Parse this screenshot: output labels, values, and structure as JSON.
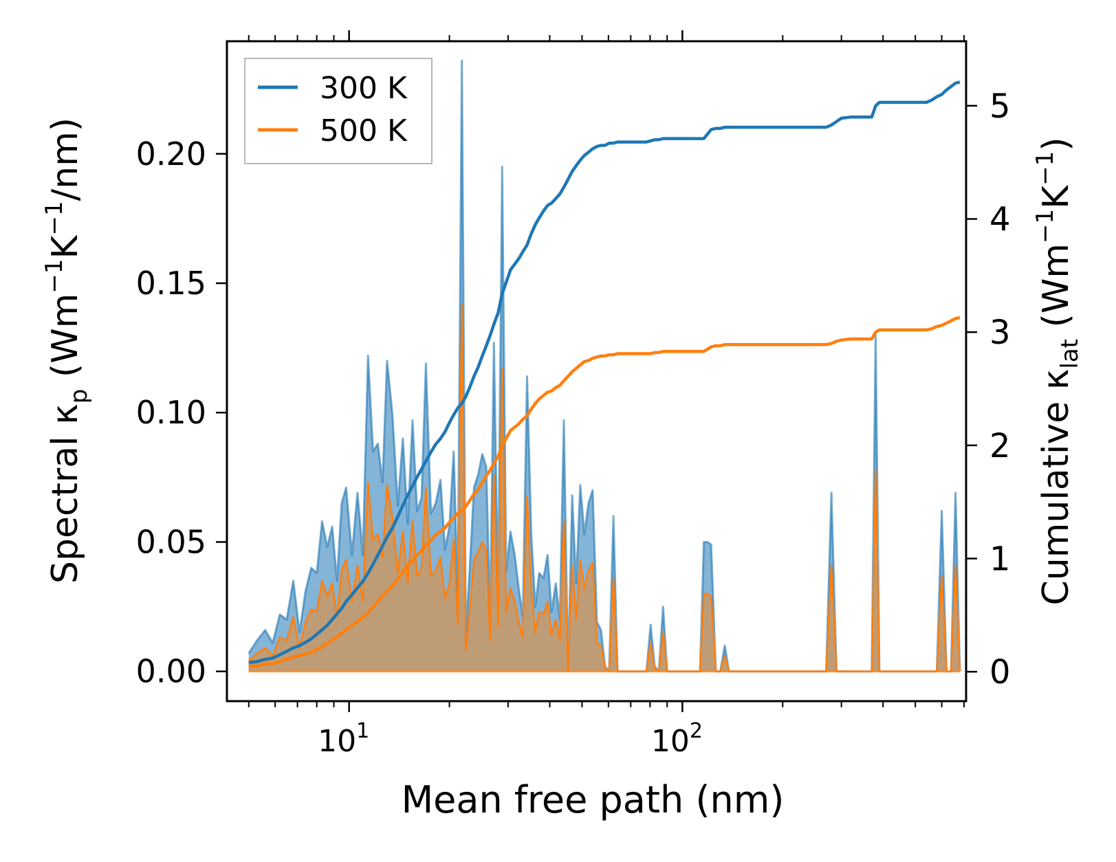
{
  "chart_data": {
    "type": "area+line",
    "xscale": "log",
    "xlim": [
      4.3,
      710
    ],
    "ylim_left": [
      -0.0115,
      0.2435
    ],
    "ylim_right": [
      -0.26,
      5.57
    ],
    "xlabel": "Mean free path (nm)",
    "ylabel_left": {
      "main": "Spectral κ",
      "sub": "p",
      "unit_open": " (Wm",
      "sup1": "−1",
      "mid": "K",
      "sup2": "−1",
      "unit_close": "/nm)"
    },
    "ylabel_right": {
      "main": "Cumulative κ",
      "sub": "lat",
      "unit_open": " (Wm",
      "sup1": "−1",
      "mid": "K",
      "sup2": "−1",
      "unit_close": ")"
    },
    "x_ticks": [
      {
        "value": 10,
        "base": "10",
        "exp": "1"
      },
      {
        "value": 100,
        "base": "10",
        "exp": "2"
      }
    ],
    "y_ticks_left": [
      "0.00",
      "0.05",
      "0.10",
      "0.15",
      "0.20"
    ],
    "y_ticks_right": [
      "0",
      "1",
      "2",
      "3",
      "4",
      "5"
    ],
    "legend": {
      "position": "upper-left",
      "entries": [
        "300 K",
        "500 K"
      ]
    },
    "colors": {
      "s300": "#1f77b4",
      "s500": "#ff7f0e",
      "fill300": "#7fb0d6",
      "fill500": "#c49a6c"
    },
    "x": [
      5.0,
      5.3,
      5.6,
      5.9,
      6.2,
      6.5,
      6.8,
      7.1,
      7.4,
      7.7,
      8.0,
      8.3,
      8.6,
      8.9,
      9.2,
      9.5,
      9.8,
      10.2,
      10.6,
      11.0,
      11.4,
      11.8,
      12.2,
      12.6,
      13.0,
      13.5,
      14.0,
      14.5,
      15.0,
      15.5,
      16.0,
      16.5,
      17.0,
      17.6,
      18.2,
      18.8,
      19.4,
      20.0,
      20.6,
      21.2,
      21.8,
      22.4,
      23.0,
      23.7,
      24.4,
      25.1,
      25.8,
      26.5,
      27.2,
      28.0,
      28.8,
      29.6,
      30.5,
      31.4,
      32.3,
      33.2,
      34.2,
      35.2,
      36.2,
      37.2,
      38.3,
      39.4,
      40.5,
      41.7,
      42.9,
      44.1,
      45.4,
      46.7,
      48.0,
      49.4,
      50.8,
      52.3,
      53.8,
      55.4,
      57.0,
      58.6,
      60.3,
      62.1,
      63.9,
      65.7,
      67.6,
      69.6,
      71.6,
      73.7,
      75.8,
      78.0,
      80.3,
      82.6,
      85.0,
      87.5,
      90.0,
      92.6,
      95.3,
      98.1,
      101,
      104,
      107,
      110,
      113,
      116,
      119,
      122,
      126,
      130,
      134,
      138,
      142,
      146,
      150,
      160,
      170,
      180,
      190,
      200,
      220,
      240,
      260,
      270,
      280,
      290,
      300,
      320,
      340,
      360,
      370,
      380,
      390,
      400,
      420,
      440,
      460,
      480,
      500,
      520,
      540,
      560,
      580,
      600,
      620,
      640,
      660,
      680
    ],
    "series": [
      {
        "name": "300 K",
        "spectral": [
          0.007,
          0.012,
          0.016,
          0.011,
          0.022,
          0.02,
          0.035,
          0.015,
          0.031,
          0.04,
          0.038,
          0.058,
          0.048,
          0.056,
          0.035,
          0.065,
          0.071,
          0.045,
          0.069,
          0.045,
          0.122,
          0.085,
          0.088,
          0.073,
          0.12,
          0.099,
          0.064,
          0.09,
          0.057,
          0.097,
          0.062,
          0.067,
          0.119,
          0.061,
          0.065,
          0.074,
          0.047,
          0.056,
          0.085,
          0.03,
          0.236,
          0.014,
          0.039,
          0.071,
          0.076,
          0.084,
          0.079,
          0.02,
          0.127,
          0.028,
          0.195,
          0.039,
          0.054,
          0.045,
          0.032,
          0.021,
          0.114,
          0.053,
          0.025,
          0.038,
          0.036,
          0.045,
          0.023,
          0.034,
          0.02,
          0.097,
          0.0,
          0.068,
          0.034,
          0.072,
          0.053,
          0.065,
          0.07,
          0.019,
          0.016,
          0.002,
          0.0,
          0.06,
          0.0,
          0.0,
          0.0,
          0.0,
          0.0,
          0.0,
          0.0,
          0.0,
          0.018,
          0.002,
          0.0,
          0.025,
          0.0,
          0.0,
          0.0,
          0.0,
          0.0,
          0.0,
          0.0,
          0.0,
          0.0,
          0.05,
          0.05,
          0.049,
          0.0,
          0.0,
          0.01,
          0.0,
          0.0,
          0.0,
          0.0,
          0.0,
          0.0,
          0.0,
          0.0,
          0.0,
          0.0,
          0.0,
          0.0,
          0.0,
          0.069,
          0.0,
          0.0,
          0.0,
          0.0,
          0.0,
          0.0,
          0.13,
          0.0,
          0.0,
          0.0,
          0.0,
          0.0,
          0.0,
          0.0,
          0.0,
          0.0,
          0.0,
          0.0,
          0.062,
          0.0,
          0.0,
          0.069,
          0.0
        ],
        "cumulative": [
          0.08,
          0.09,
          0.11,
          0.12,
          0.15,
          0.18,
          0.21,
          0.23,
          0.26,
          0.29,
          0.33,
          0.37,
          0.41,
          0.46,
          0.51,
          0.56,
          0.62,
          0.68,
          0.74,
          0.8,
          0.87,
          0.95,
          1.03,
          1.11,
          1.19,
          1.27,
          1.37,
          1.47,
          1.56,
          1.64,
          1.72,
          1.79,
          1.86,
          1.94,
          2.01,
          2.06,
          2.12,
          2.2,
          2.27,
          2.33,
          2.37,
          2.43,
          2.51,
          2.61,
          2.69,
          2.79,
          2.88,
          2.97,
          3.07,
          3.17,
          3.34,
          3.44,
          3.55,
          3.6,
          3.65,
          3.71,
          3.77,
          3.87,
          3.95,
          4.01,
          4.07,
          4.12,
          4.14,
          4.18,
          4.22,
          4.28,
          4.35,
          4.42,
          4.47,
          4.52,
          4.56,
          4.59,
          4.62,
          4.64,
          4.65,
          4.65,
          4.67,
          4.67,
          4.68,
          4.68,
          4.68,
          4.68,
          4.68,
          4.68,
          4.68,
          4.68,
          4.69,
          4.7,
          4.7,
          4.71,
          4.71,
          4.71,
          4.71,
          4.71,
          4.71,
          4.71,
          4.71,
          4.71,
          4.71,
          4.71,
          4.75,
          4.79,
          4.8,
          4.8,
          4.81,
          4.81,
          4.81,
          4.81,
          4.81,
          4.81,
          4.81,
          4.81,
          4.81,
          4.81,
          4.81,
          4.81,
          4.81,
          4.81,
          4.83,
          4.86,
          4.89,
          4.9,
          4.9,
          4.9,
          4.9,
          5.0,
          5.03,
          5.03,
          5.03,
          5.03,
          5.03,
          5.03,
          5.03,
          5.03,
          5.03,
          5.05,
          5.08,
          5.1,
          5.14,
          5.17,
          5.2,
          5.21
        ]
      },
      {
        "name": "500 K",
        "spectral": [
          0.004,
          0.007,
          0.009,
          0.006,
          0.013,
          0.012,
          0.021,
          0.009,
          0.019,
          0.024,
          0.023,
          0.035,
          0.029,
          0.034,
          0.021,
          0.039,
          0.043,
          0.027,
          0.041,
          0.027,
          0.073,
          0.051,
          0.053,
          0.044,
          0.072,
          0.059,
          0.038,
          0.054,
          0.034,
          0.058,
          0.037,
          0.04,
          0.071,
          0.037,
          0.039,
          0.044,
          0.028,
          0.034,
          0.051,
          0.018,
          0.142,
          0.008,
          0.023,
          0.043,
          0.046,
          0.05,
          0.047,
          0.012,
          0.076,
          0.017,
          0.117,
          0.023,
          0.032,
          0.027,
          0.019,
          0.013,
          0.068,
          0.032,
          0.015,
          0.023,
          0.022,
          0.027,
          0.014,
          0.02,
          0.012,
          0.058,
          0.0,
          0.041,
          0.02,
          0.043,
          0.032,
          0.039,
          0.042,
          0.011,
          0.01,
          0.001,
          0.0,
          0.036,
          0.0,
          0.0,
          0.0,
          0.0,
          0.0,
          0.0,
          0.0,
          0.0,
          0.011,
          0.001,
          0.0,
          0.015,
          0.0,
          0.0,
          0.0,
          0.0,
          0.0,
          0.0,
          0.0,
          0.0,
          0.0,
          0.03,
          0.03,
          0.029,
          0.0,
          0.0,
          0.006,
          0.0,
          0.0,
          0.0,
          0.0,
          0.0,
          0.0,
          0.0,
          0.0,
          0.0,
          0.0,
          0.0,
          0.0,
          0.0,
          0.041,
          0.0,
          0.0,
          0.0,
          0.0,
          0.0,
          0.0,
          0.078,
          0.0,
          0.0,
          0.0,
          0.0,
          0.0,
          0.0,
          0.0,
          0.0,
          0.0,
          0.0,
          0.0,
          0.037,
          0.0,
          0.0,
          0.041,
          0.0
        ],
        "cumulative": [
          0.05,
          0.05,
          0.07,
          0.07,
          0.09,
          0.11,
          0.13,
          0.14,
          0.16,
          0.17,
          0.2,
          0.22,
          0.25,
          0.28,
          0.31,
          0.34,
          0.37,
          0.41,
          0.44,
          0.48,
          0.52,
          0.57,
          0.62,
          0.67,
          0.71,
          0.76,
          0.82,
          0.88,
          0.94,
          0.98,
          1.03,
          1.07,
          1.12,
          1.16,
          1.21,
          1.24,
          1.27,
          1.32,
          1.36,
          1.4,
          1.42,
          1.46,
          1.51,
          1.57,
          1.61,
          1.67,
          1.73,
          1.78,
          1.84,
          1.9,
          2.0,
          2.06,
          2.13,
          2.16,
          2.19,
          2.23,
          2.26,
          2.32,
          2.37,
          2.41,
          2.44,
          2.47,
          2.48,
          2.51,
          2.53,
          2.57,
          2.61,
          2.65,
          2.68,
          2.71,
          2.74,
          2.75,
          2.77,
          2.78,
          2.79,
          2.79,
          2.8,
          2.8,
          2.81,
          2.81,
          2.81,
          2.81,
          2.81,
          2.81,
          2.81,
          2.81,
          2.81,
          2.82,
          2.82,
          2.83,
          2.83,
          2.83,
          2.83,
          2.83,
          2.83,
          2.83,
          2.83,
          2.83,
          2.83,
          2.83,
          2.85,
          2.87,
          2.88,
          2.88,
          2.89,
          2.89,
          2.89,
          2.89,
          2.89,
          2.89,
          2.89,
          2.89,
          2.89,
          2.89,
          2.89,
          2.89,
          2.89,
          2.89,
          2.9,
          2.92,
          2.93,
          2.94,
          2.94,
          2.94,
          2.94,
          3.0,
          3.02,
          3.02,
          3.02,
          3.02,
          3.02,
          3.02,
          3.02,
          3.02,
          3.02,
          3.03,
          3.05,
          3.06,
          3.08,
          3.1,
          3.12,
          3.13
        ]
      }
    ]
  }
}
